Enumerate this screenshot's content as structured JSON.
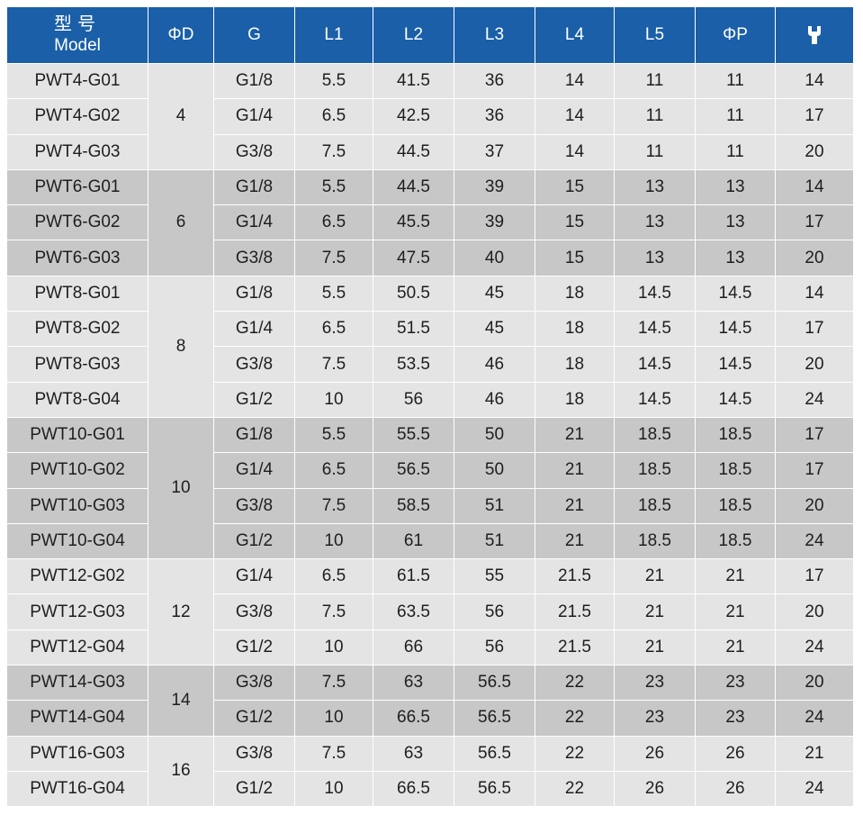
{
  "header": {
    "model_cn": "型号",
    "model_en": "Model",
    "columns": [
      "ΦD",
      "G",
      "L1",
      "L2",
      "L3",
      "L4",
      "L5",
      "ΦP"
    ],
    "wrench_icon": "wrench-icon"
  },
  "groups": [
    {
      "d": "4",
      "shade": "light",
      "rows": [
        {
          "model": "PWT4-G01",
          "g": "G1/8",
          "l1": "5.5",
          "l2": "41.5",
          "l3": "36",
          "l4": "14",
          "l5": "11",
          "p": "11",
          "w": "14"
        },
        {
          "model": "PWT4-G02",
          "g": "G1/4",
          "l1": "6.5",
          "l2": "42.5",
          "l3": "36",
          "l4": "14",
          "l5": "11",
          "p": "11",
          "w": "17"
        },
        {
          "model": "PWT4-G03",
          "g": "G3/8",
          "l1": "7.5",
          "l2": "44.5",
          "l3": "37",
          "l4": "14",
          "l5": "11",
          "p": "11",
          "w": "20"
        }
      ]
    },
    {
      "d": "6",
      "shade": "dark",
      "rows": [
        {
          "model": "PWT6-G01",
          "g": "G1/8",
          "l1": "5.5",
          "l2": "44.5",
          "l3": "39",
          "l4": "15",
          "l5": "13",
          "p": "13",
          "w": "14"
        },
        {
          "model": "PWT6-G02",
          "g": "G1/4",
          "l1": "6.5",
          "l2": "45.5",
          "l3": "39",
          "l4": "15",
          "l5": "13",
          "p": "13",
          "w": "17"
        },
        {
          "model": "PWT6-G03",
          "g": "G3/8",
          "l1": "7.5",
          "l2": "47.5",
          "l3": "40",
          "l4": "15",
          "l5": "13",
          "p": "13",
          "w": "20"
        }
      ]
    },
    {
      "d": "8",
      "shade": "light",
      "rows": [
        {
          "model": "PWT8-G01",
          "g": "G1/8",
          "l1": "5.5",
          "l2": "50.5",
          "l3": "45",
          "l4": "18",
          "l5": "14.5",
          "p": "14.5",
          "w": "14"
        },
        {
          "model": "PWT8-G02",
          "g": "G1/4",
          "l1": "6.5",
          "l2": "51.5",
          "l3": "45",
          "l4": "18",
          "l5": "14.5",
          "p": "14.5",
          "w": "17"
        },
        {
          "model": "PWT8-G03",
          "g": "G3/8",
          "l1": "7.5",
          "l2": "53.5",
          "l3": "46",
          "l4": "18",
          "l5": "14.5",
          "p": "14.5",
          "w": "20"
        },
        {
          "model": "PWT8-G04",
          "g": "G1/2",
          "l1": "10",
          "l2": "56",
          "l3": "46",
          "l4": "18",
          "l5": "14.5",
          "p": "14.5",
          "w": "24"
        }
      ]
    },
    {
      "d": "10",
      "shade": "dark",
      "rows": [
        {
          "model": "PWT10-G01",
          "g": "G1/8",
          "l1": "5.5",
          "l2": "55.5",
          "l3": "50",
          "l4": "21",
          "l5": "18.5",
          "p": "18.5",
          "w": "17"
        },
        {
          "model": "PWT10-G02",
          "g": "G1/4",
          "l1": "6.5",
          "l2": "56.5",
          "l3": "50",
          "l4": "21",
          "l5": "18.5",
          "p": "18.5",
          "w": "17"
        },
        {
          "model": "PWT10-G03",
          "g": "G3/8",
          "l1": "7.5",
          "l2": "58.5",
          "l3": "51",
          "l4": "21",
          "l5": "18.5",
          "p": "18.5",
          "w": "20"
        },
        {
          "model": "PWT10-G04",
          "g": "G1/2",
          "l1": "10",
          "l2": "61",
          "l3": "51",
          "l4": "21",
          "l5": "18.5",
          "p": "18.5",
          "w": "24"
        }
      ]
    },
    {
      "d": "12",
      "shade": "light",
      "rows": [
        {
          "model": "PWT12-G02",
          "g": "G1/4",
          "l1": "6.5",
          "l2": "61.5",
          "l3": "55",
          "l4": "21.5",
          "l5": "21",
          "p": "21",
          "w": "17"
        },
        {
          "model": "PWT12-G03",
          "g": "G3/8",
          "l1": "7.5",
          "l2": "63.5",
          "l3": "56",
          "l4": "21.5",
          "l5": "21",
          "p": "21",
          "w": "20"
        },
        {
          "model": "PWT12-G04",
          "g": "G1/2",
          "l1": "10",
          "l2": "66",
          "l3": "56",
          "l4": "21.5",
          "l5": "21",
          "p": "21",
          "w": "24"
        }
      ]
    },
    {
      "d": "14",
      "shade": "dark",
      "rows": [
        {
          "model": "PWT14-G03",
          "g": "G3/8",
          "l1": "7.5",
          "l2": "63",
          "l3": "56.5",
          "l4": "22",
          "l5": "23",
          "p": "23",
          "w": "20"
        },
        {
          "model": "PWT14-G04",
          "g": "G1/2",
          "l1": "10",
          "l2": "66.5",
          "l3": "56.5",
          "l4": "22",
          "l5": "23",
          "p": "23",
          "w": "24"
        }
      ]
    },
    {
      "d": "16",
      "shade": "light",
      "rows": [
        {
          "model": "PWT16-G03",
          "g": "G3/8",
          "l1": "7.5",
          "l2": "63",
          "l3": "56.5",
          "l4": "22",
          "l5": "26",
          "p": "26",
          "w": "21"
        },
        {
          "model": "PWT16-G04",
          "g": "G1/2",
          "l1": "10",
          "l2": "66.5",
          "l3": "56.5",
          "l4": "22",
          "l5": "26",
          "p": "26",
          "w": "24"
        }
      ]
    }
  ]
}
